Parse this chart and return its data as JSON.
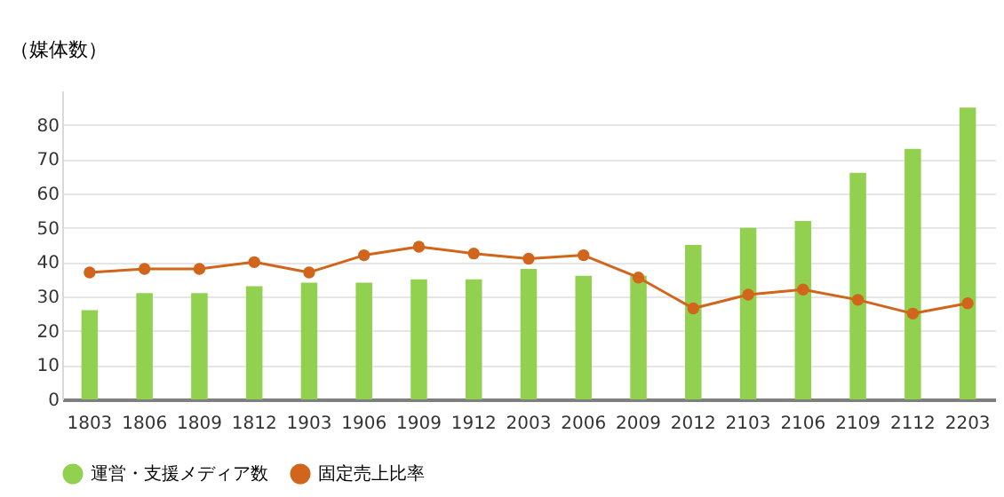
{
  "chart_data": {
    "type": "bar",
    "ylabel": "（媒体数）",
    "categories": [
      "1803",
      "1806",
      "1809",
      "1812",
      "1903",
      "1906",
      "1909",
      "1912",
      "2003",
      "2006",
      "2009",
      "2012",
      "2103",
      "2106",
      "2109",
      "2112",
      "2203"
    ],
    "series": [
      {
        "name": "運営・支援メディア数",
        "color": "#92d050",
        "values": [
          26,
          31,
          31,
          33,
          34,
          34,
          35,
          35,
          38,
          36,
          36,
          45,
          50,
          52,
          66,
          73,
          85
        ]
      },
      {
        "name": "固定売上比率",
        "type": "line",
        "color": "#d0651b",
        "marker": "circle",
        "values": [
          37,
          38,
          38,
          40,
          37,
          42,
          44.5,
          42.5,
          41,
          42,
          35.5,
          26.5,
          30.5,
          32,
          29,
          25,
          28
        ]
      }
    ],
    "ylim": [
      0,
      90
    ],
    "yticks": [
      0,
      10,
      20,
      30,
      40,
      50,
      60,
      70,
      80
    ],
    "grid": "y",
    "legend": "bottom"
  }
}
